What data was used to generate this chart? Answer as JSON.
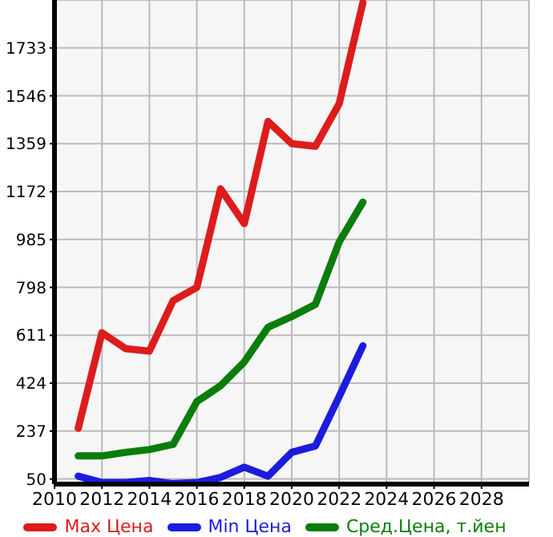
{
  "chart_data": {
    "type": "line",
    "x": [
      2011,
      2012,
      2013,
      2014,
      2015,
      2016,
      2017,
      2018,
      2019,
      2020,
      2021,
      2022,
      2023
    ],
    "series": [
      {
        "name": "Max Цена",
        "color": "#dd1c1c",
        "values": [
          248,
          621,
          559,
          549,
          746,
          798,
          1183,
          1047,
          1446,
          1359,
          1349,
          1515,
          1910
        ]
      },
      {
        "name": "Min Цена",
        "color": "#1c1cdd",
        "values": [
          61,
          36,
          36,
          44,
          32,
          36,
          56,
          96,
          61,
          154,
          179,
          372,
          570
        ]
      },
      {
        "name": "Сред.Цена, т.йен",
        "color": "#0a7d0a",
        "values": [
          140,
          140,
          154,
          165,
          185,
          352,
          414,
          507,
          642,
          684,
          732,
          975,
          1131
        ]
      }
    ],
    "xlim": [
      2010,
      2030
    ],
    "xticks": [
      2010,
      2012,
      2014,
      2016,
      2018,
      2020,
      2022,
      2024,
      2026,
      2028
    ],
    "ylim": [
      30,
      1920
    ],
    "yticks": [
      50,
      237,
      424,
      611,
      798,
      985,
      1172,
      1359,
      1546,
      1733
    ],
    "grid": true,
    "legend": "bottom",
    "marker": "none",
    "line_style": "solid"
  }
}
